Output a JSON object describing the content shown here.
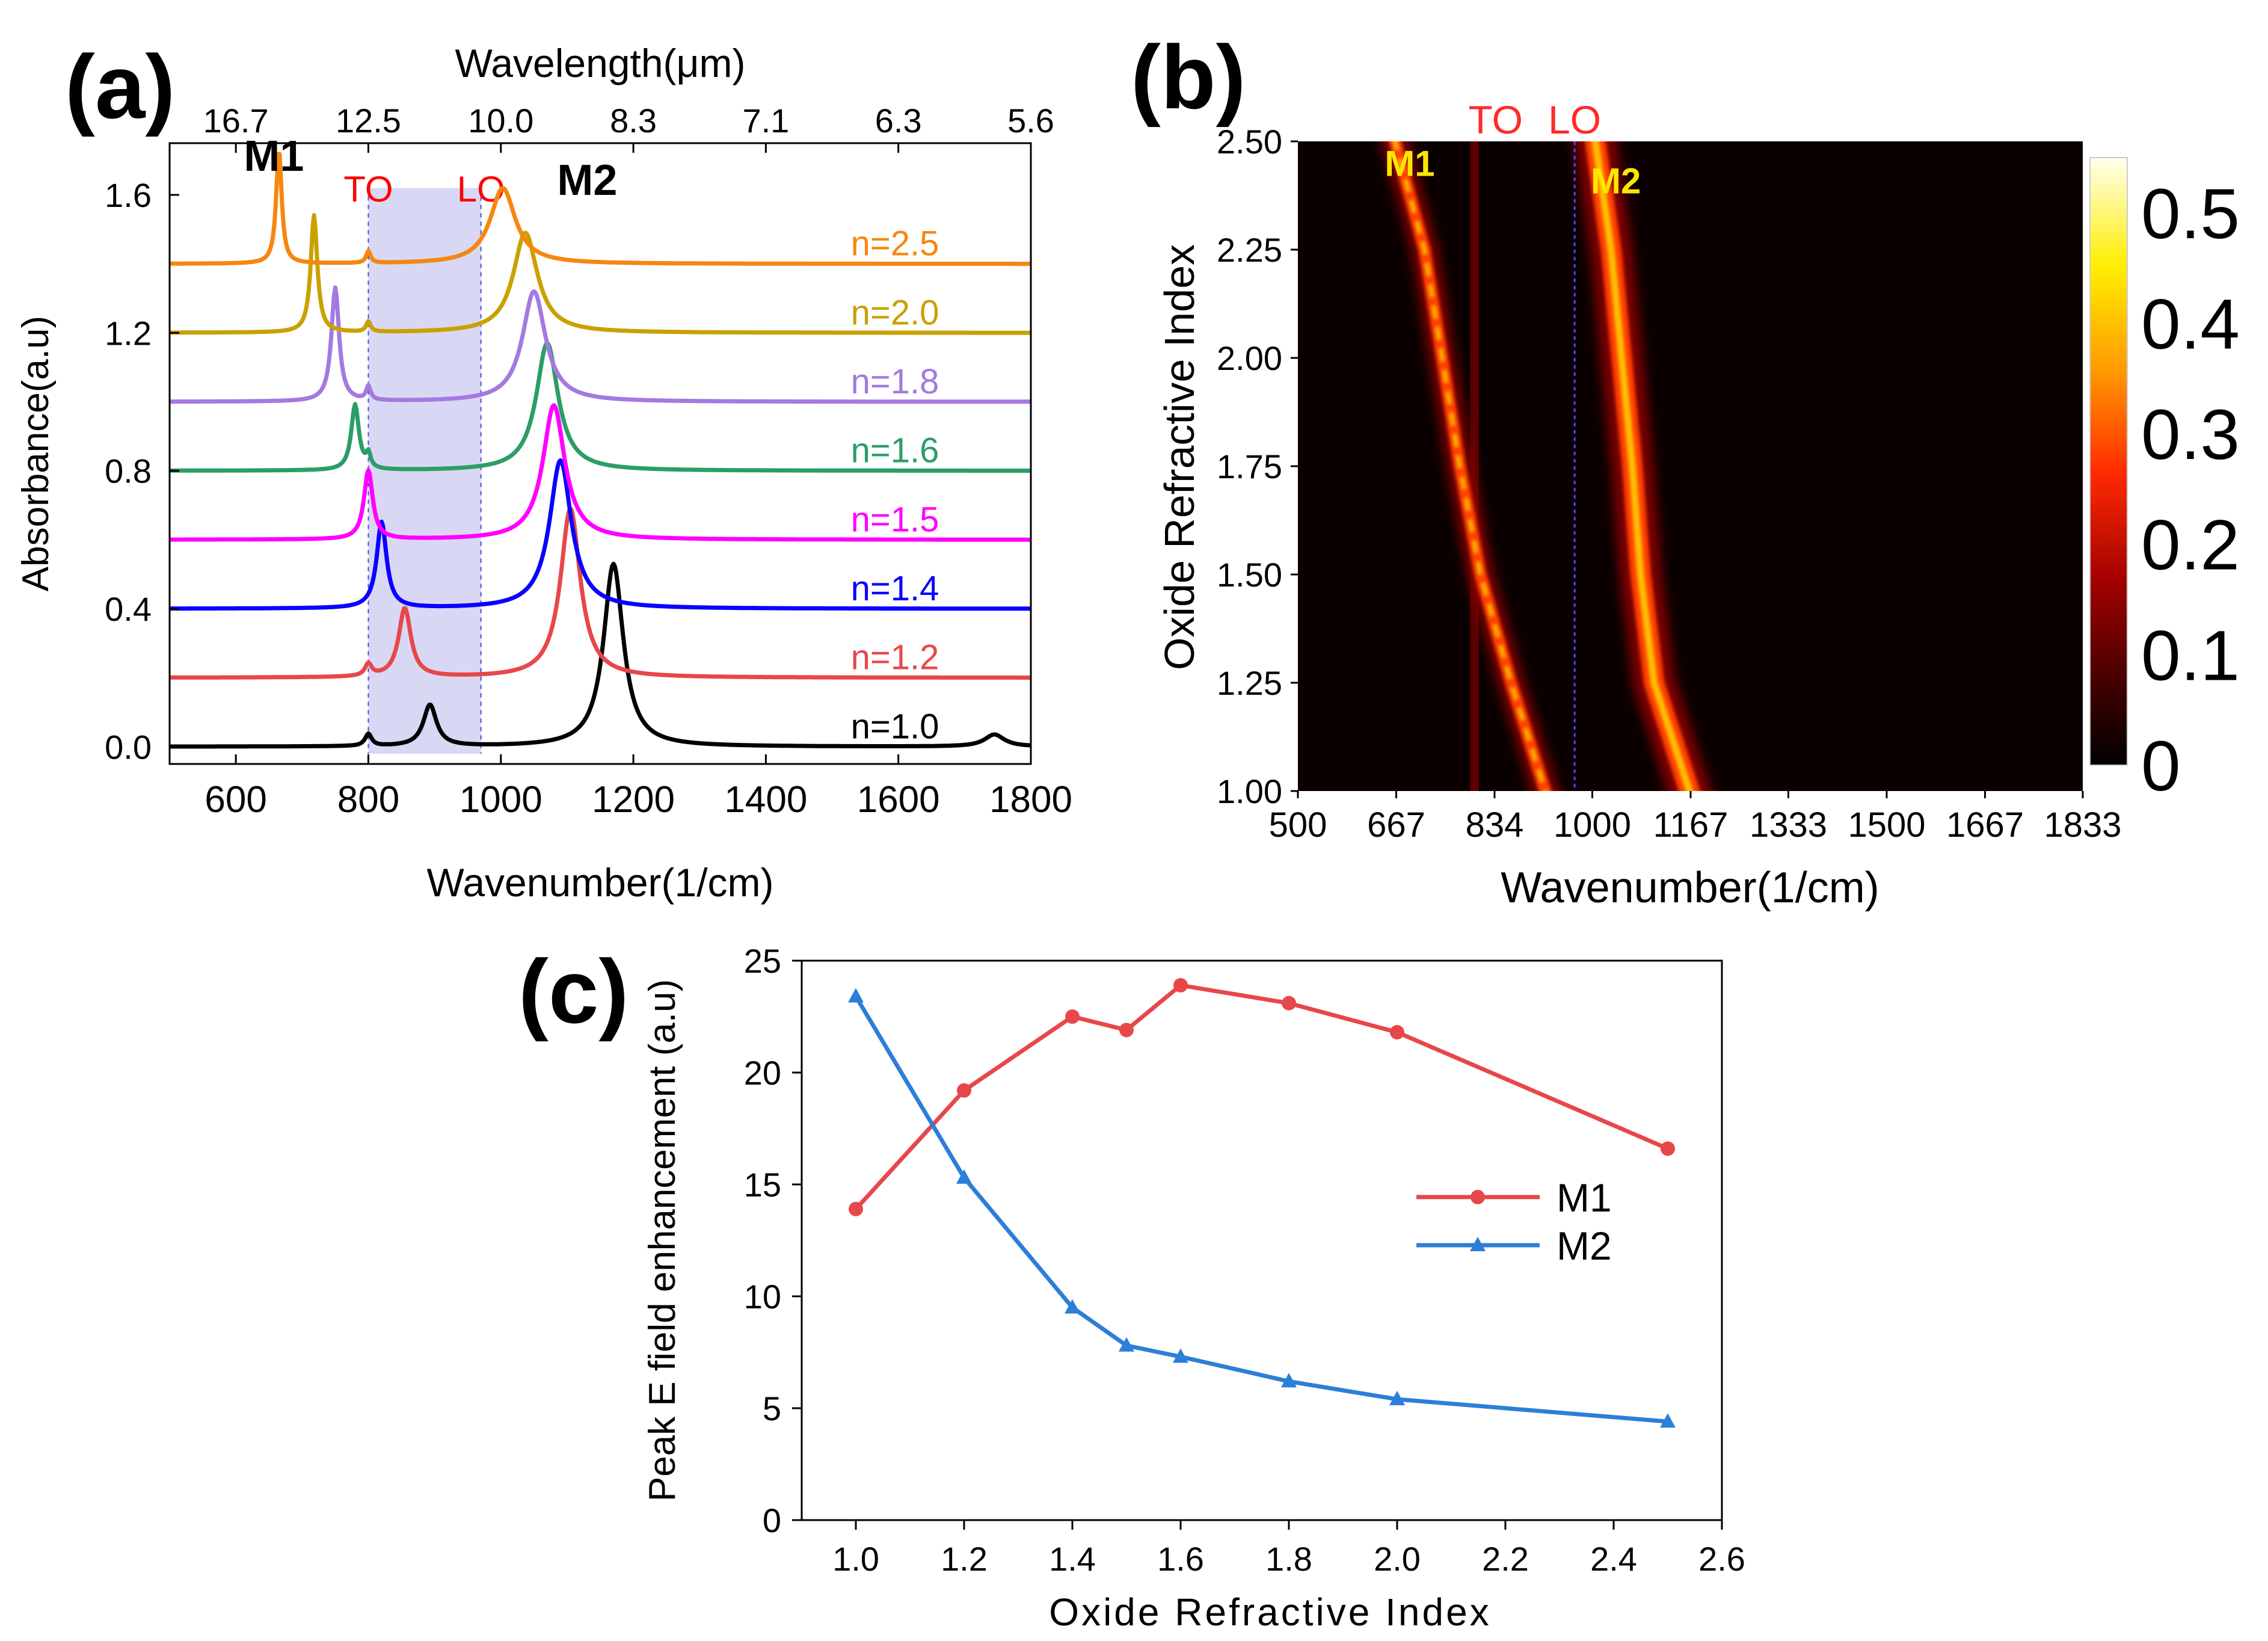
{
  "chart_data": [
    {
      "panel": "(a)",
      "type": "line",
      "xlabel": "Wavenumber(1/cm)",
      "ylabel": "Absorbance(a.u)",
      "top_axis_label": "Wavelength(μm)",
      "xlim": [
        500,
        1800
      ],
      "ylim": [
        -0.05,
        1.75
      ],
      "xticks": [
        600,
        800,
        1000,
        1200,
        1400,
        1600,
        1800
      ],
      "yticks": [
        0.0,
        0.4,
        0.8,
        1.2,
        1.6
      ],
      "ytick_labels": [
        "0.0",
        "0.4",
        "0.8",
        "1.2",
        "1.6"
      ],
      "top_ticks": [
        {
          "wavenumber": 600,
          "label": "16.7"
        },
        {
          "wavenumber": 800,
          "label": "12.5"
        },
        {
          "wavenumber": 1000,
          "label": "10.0"
        },
        {
          "wavenumber": 1200,
          "label": "8.3"
        },
        {
          "wavenumber": 1400,
          "label": "7.1"
        },
        {
          "wavenumber": 1600,
          "label": "6.3"
        },
        {
          "wavenumber": 1800,
          "label": "5.6"
        }
      ],
      "shaded_band": [
        800,
        970
      ],
      "band_color": "#d8d8f4",
      "markers": [
        {
          "label": "TO",
          "x": 800,
          "color": "#ff0000"
        },
        {
          "label": "LO",
          "x": 970,
          "color": "#ff0000"
        }
      ],
      "mode_labels": [
        {
          "label": "M1",
          "x": 612,
          "y": 1.67
        },
        {
          "label": "M2",
          "x": 1085,
          "y": 1.6
        }
      ],
      "series": [
        {
          "name": "n=1.0",
          "color": "#000000",
          "offset": 0.0,
          "peaks": [
            [
              800,
              0.035,
              6
            ],
            [
              893,
              0.12,
              12
            ],
            [
              1170,
              0.53,
              18
            ],
            [
              1745,
              0.035,
              18
            ]
          ]
        },
        {
          "name": "n=1.2",
          "color": "#e8474a",
          "offset": 0.2,
          "peaks": [
            [
              800,
              0.035,
              6
            ],
            [
              855,
              0.2,
              11
            ],
            [
              1105,
              0.49,
              18
            ]
          ]
        },
        {
          "name": "n=1.4",
          "color": "#0a00ff",
          "offset": 0.4,
          "peaks": [
            [
              820,
              0.25,
              9
            ],
            [
              1090,
              0.43,
              20
            ]
          ]
        },
        {
          "name": "n=1.5",
          "color": "#ff00ff",
          "offset": 0.6,
          "peaks": [
            [
              800,
              0.2,
              8
            ],
            [
              1080,
              0.39,
              20
            ]
          ]
        },
        {
          "name": "n=1.6",
          "color": "#2a9e66",
          "offset": 0.8,
          "peaks": [
            [
              780,
              0.19,
              7
            ],
            [
              800,
              0.04,
              4
            ],
            [
              1070,
              0.37,
              20
            ]
          ]
        },
        {
          "name": "n=1.8",
          "color": "#a479e0",
          "offset": 1.0,
          "peaks": [
            [
              750,
              0.33,
              7
            ],
            [
              800,
              0.04,
              4
            ],
            [
              1050,
              0.32,
              21
            ]
          ]
        },
        {
          "name": "n=2.0",
          "color": "#c9a100",
          "offset": 1.2,
          "peaks": [
            [
              718,
              0.34,
              6
            ],
            [
              800,
              0.03,
              4
            ],
            [
              1037,
              0.29,
              22
            ]
          ]
        },
        {
          "name": "n=2.5",
          "color": "#f7860f",
          "offset": 1.4,
          "peaks": [
            [
              665,
              0.33,
              5
            ],
            [
              800,
              0.035,
              4
            ],
            [
              1003,
              0.22,
              23
            ]
          ]
        }
      ]
    },
    {
      "panel": "(b)",
      "type": "heatmap",
      "xlabel": "Wavenumber(1/cm)",
      "ylabel": "Oxide Refractive Index",
      "xlim": [
        500,
        1833
      ],
      "ylim": [
        1.0,
        2.5
      ],
      "xticks": [
        500,
        667,
        834,
        1000,
        1167,
        1333,
        1500,
        1667,
        1833
      ],
      "yticks": [
        1.0,
        1.25,
        1.5,
        1.75,
        2.0,
        2.25,
        2.5
      ],
      "ytick_labels": [
        "1.00",
        "1.25",
        "1.50",
        "1.75",
        "2.00",
        "2.25",
        "2.50"
      ],
      "markers": [
        {
          "label": "TO",
          "x": 800,
          "color": "#ff2a2a"
        },
        {
          "label": "LO",
          "x": 970,
          "color": "#ff2a2a"
        }
      ],
      "mode_labels": [
        {
          "label": "M1",
          "x": 690,
          "y": 2.42,
          "color": "#ffe600"
        },
        {
          "label": "M2",
          "x": 1040,
          "y": 2.38,
          "color": "#ffe600"
        }
      ],
      "ridges": [
        {
          "name": "M1",
          "n": [
            1.0,
            1.25,
            1.5,
            1.75,
            2.0,
            2.25,
            2.5
          ],
          "wavenumber": [
            920,
            862,
            810,
            775,
            745,
            715,
            665
          ]
        },
        {
          "name": "M2",
          "n": [
            1.0,
            1.25,
            1.5,
            1.75,
            2.0,
            2.25,
            2.5
          ],
          "wavenumber": [
            1165,
            1105,
            1082,
            1068,
            1050,
            1032,
            1005
          ]
        }
      ],
      "colorbar": {
        "min": 0,
        "max": 0.55,
        "ticks": [
          0,
          0.1,
          0.2,
          0.3,
          0.4,
          0.5
        ],
        "tick_labels": [
          "0",
          "0.1",
          "0.2",
          "0.3",
          "0.4",
          "0.5"
        ]
      }
    },
    {
      "panel": "(c)",
      "type": "line",
      "xlabel": "Oxide Refractive Index",
      "ylabel": "Peak E field enhancement (a.u)",
      "xlim": [
        0.9,
        2.6
      ],
      "ylim": [
        0,
        25
      ],
      "xticks": [
        1.0,
        1.2,
        1.4,
        1.6,
        1.8,
        2.0,
        2.2,
        2.4,
        2.6
      ],
      "xtick_labels": [
        "1.0",
        "1.2",
        "1.4",
        "1.6",
        "1.8",
        "2.0",
        "2.2",
        "2.4",
        "2.6"
      ],
      "yticks": [
        0,
        5,
        10,
        15,
        20,
        25
      ],
      "ytick_labels": [
        "0",
        "5",
        "10",
        "15",
        "20",
        "25"
      ],
      "legend_position": "center-right",
      "series": [
        {
          "name": "M1",
          "color": "#e8474a",
          "marker": "circle",
          "x": [
            1.0,
            1.2,
            1.4,
            1.5,
            1.6,
            1.8,
            2.0,
            2.5
          ],
          "y": [
            13.9,
            19.2,
            22.5,
            21.9,
            23.9,
            23.1,
            21.8,
            16.6
          ]
        },
        {
          "name": "M2",
          "color": "#2c7fd8",
          "marker": "triangle",
          "x": [
            1.0,
            1.2,
            1.4,
            1.5,
            1.6,
            1.8,
            2.0,
            2.5
          ],
          "y": [
            23.4,
            15.3,
            9.5,
            7.8,
            7.3,
            6.2,
            5.4,
            4.4
          ]
        }
      ]
    }
  ],
  "panel_labels": {
    "a": "(a)",
    "b": "(b)",
    "c": "(c)"
  }
}
